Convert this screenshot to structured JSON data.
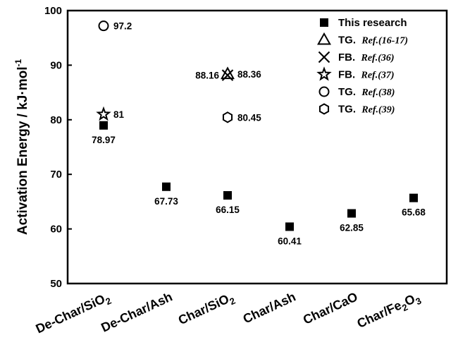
{
  "chart_data": {
    "type": "scatter",
    "ylabel": "Activation Energy / kJ·mol",
    "ylabel_superscript": "-1",
    "ylim": [
      50,
      100
    ],
    "yticks": [
      50,
      60,
      70,
      80,
      90,
      100
    ],
    "grid": false,
    "legend_position": "top-right",
    "categories": [
      {
        "parts": [
          {
            "t": "De-Char/SiO"
          },
          {
            "t": "2",
            "sub": true
          }
        ]
      },
      {
        "parts": [
          {
            "t": "De-Char/Ash"
          }
        ]
      },
      {
        "parts": [
          {
            "t": "Char/SiO"
          },
          {
            "t": "2",
            "sub": true
          }
        ]
      },
      {
        "parts": [
          {
            "t": "Char/Ash"
          }
        ]
      },
      {
        "parts": [
          {
            "t": "Char/CaO"
          }
        ]
      },
      {
        "parts": [
          {
            "t": "Char/Fe"
          },
          {
            "t": "2",
            "sub": true
          },
          {
            "t": "O"
          },
          {
            "t": "3",
            "sub": true
          }
        ]
      }
    ],
    "series": [
      {
        "name": "This research",
        "marker": "square",
        "points": [
          {
            "cat": 0,
            "y": 78.97,
            "label": "78.97",
            "label_pos": "below"
          },
          {
            "cat": 1,
            "y": 67.73,
            "label": "67.73",
            "label_pos": "below"
          },
          {
            "cat": 2,
            "y": 66.15,
            "label": "66.15",
            "label_pos": "below"
          },
          {
            "cat": 3,
            "y": 60.41,
            "label": "60.41",
            "label_pos": "below"
          },
          {
            "cat": 4,
            "y": 62.85,
            "label": "62.85",
            "label_pos": "below"
          },
          {
            "cat": 5,
            "y": 65.68,
            "label": "65.68",
            "label_pos": "below"
          }
        ]
      },
      {
        "name_parts": [
          {
            "t": "TG.  ",
            "style": "normal"
          },
          {
            "t": "Ref.(16-17)",
            "style": "ref"
          }
        ],
        "marker": "triangle",
        "points": [
          {
            "cat": 2,
            "y": 88.36,
            "label": "88.36",
            "label_pos": "right"
          }
        ]
      },
      {
        "name_parts": [
          {
            "t": "FB.  ",
            "style": "normal"
          },
          {
            "t": "Ref.(36)",
            "style": "ref"
          }
        ],
        "marker": "x",
        "points": [
          {
            "cat": 2,
            "y": 88.16,
            "label": "88.16",
            "label_pos": "left"
          }
        ]
      },
      {
        "name_parts": [
          {
            "t": "FB.  ",
            "style": "normal"
          },
          {
            "t": "Ref.(37)",
            "style": "ref"
          }
        ],
        "marker": "star",
        "points": [
          {
            "cat": 0,
            "y": 81,
            "label": "81",
            "label_pos": "right"
          }
        ]
      },
      {
        "name_parts": [
          {
            "t": "TG.  ",
            "style": "normal"
          },
          {
            "t": "Ref.(38)",
            "style": "ref"
          }
        ],
        "marker": "circle",
        "points": [
          {
            "cat": 0,
            "y": 97.2,
            "label": "97.2",
            "label_pos": "right"
          }
        ]
      },
      {
        "name_parts": [
          {
            "t": "TG.  ",
            "style": "normal"
          },
          {
            "t": "Ref.(39)",
            "style": "ref"
          }
        ],
        "marker": "hexagon",
        "points": [
          {
            "cat": 2,
            "y": 80.45,
            "label": "80.45",
            "label_pos": "right"
          }
        ]
      }
    ]
  }
}
